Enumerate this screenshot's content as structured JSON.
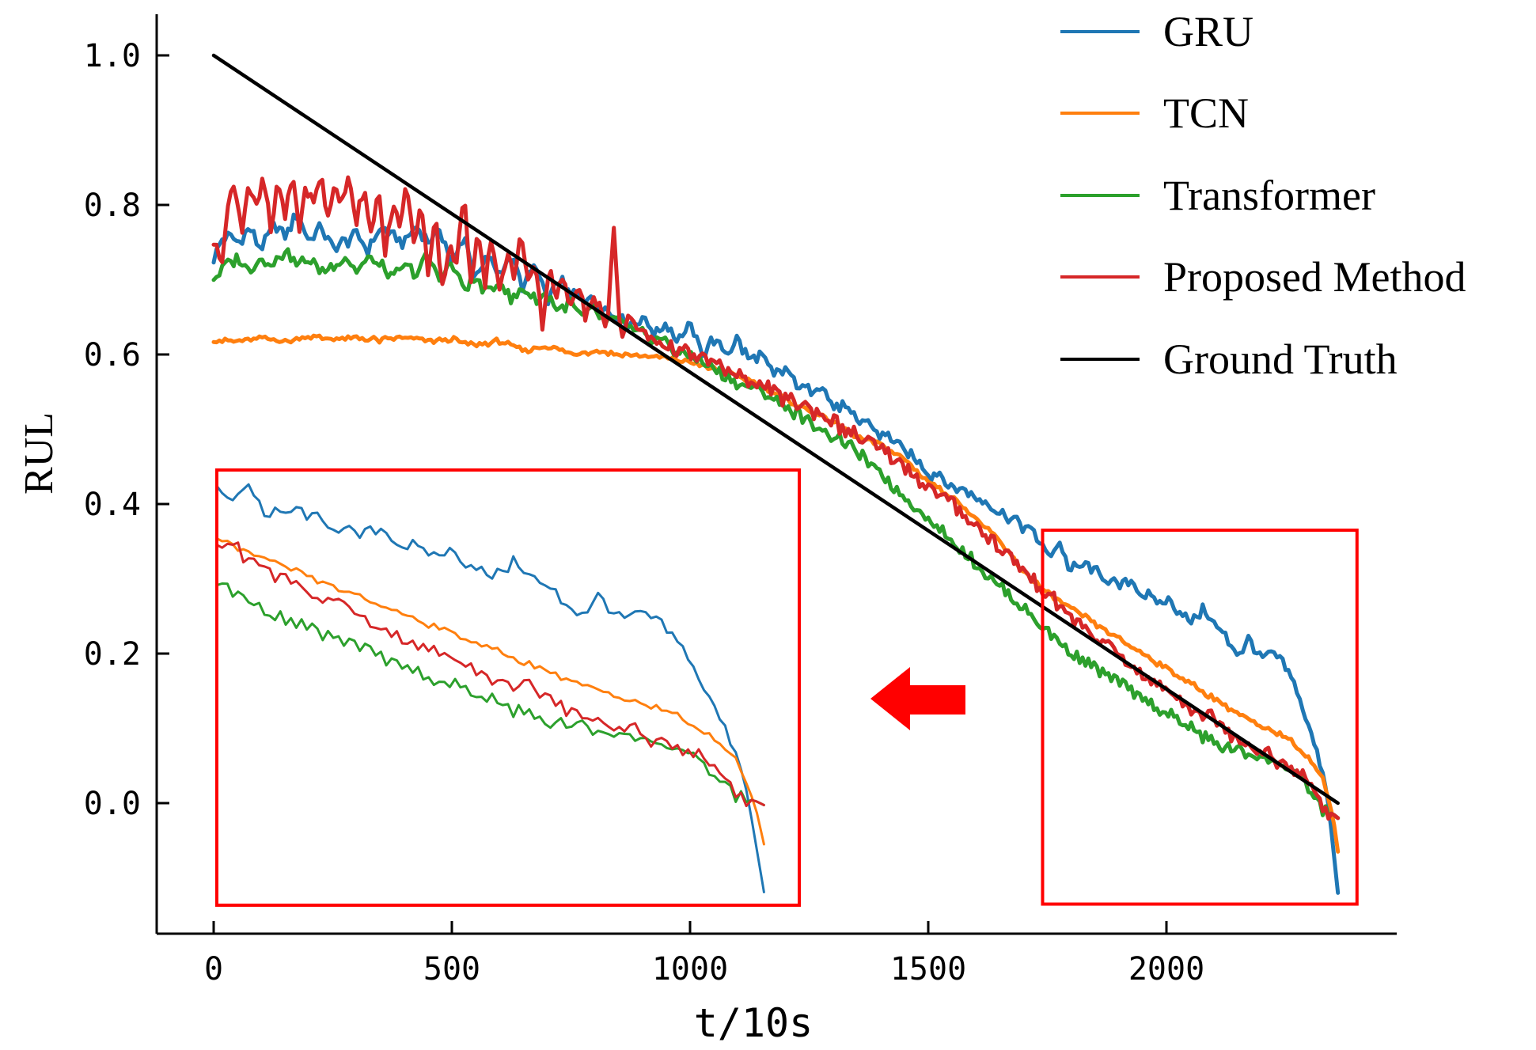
{
  "chart_data": {
    "type": "line",
    "title": "",
    "xlabel": "t/10s",
    "ylabel": "RUL",
    "xlim": [
      -120,
      2500
    ],
    "ylim": [
      -0.18,
      1.07
    ],
    "xticks": [
      0,
      500,
      1000,
      1500,
      2000
    ],
    "yticks": [
      0.0,
      0.2,
      0.4,
      0.6,
      0.8,
      1.0
    ],
    "xtick_labels": [
      "0",
      "500",
      "1000",
      "1500",
      "2000"
    ],
    "ytick_labels": [
      "0.0",
      "0.2",
      "0.4",
      "0.6",
      "0.8",
      "1.0"
    ],
    "grid": false,
    "legend_position": "top-right",
    "series": [
      {
        "name": "GRU",
        "color": "#1f77b4",
        "x": [
          0,
          25,
          50,
          75,
          100,
          125,
          150,
          175,
          200,
          225,
          250,
          275,
          300,
          325,
          350,
          375,
          400,
          425,
          450,
          475,
          500,
          525,
          550,
          575,
          600,
          625,
          650,
          675,
          700,
          725,
          750,
          775,
          800,
          825,
          850,
          875,
          900,
          925,
          950,
          975,
          1000,
          1025,
          1050,
          1075,
          1100,
          1125,
          1150,
          1175,
          1200,
          1225,
          1250,
          1275,
          1300,
          1325,
          1350,
          1375,
          1400,
          1425,
          1450,
          1475,
          1500,
          1525,
          1550,
          1575,
          1600,
          1625,
          1650,
          1675,
          1700,
          1725,
          1750,
          1775,
          1800,
          1825,
          1850,
          1875,
          1900,
          1925,
          1950,
          1975,
          2000,
          2025,
          2050,
          2075,
          2100,
          2125,
          2150,
          2175,
          2200,
          2225,
          2250,
          2275,
          2300,
          2325,
          2340,
          2350,
          2360
        ],
        "values": [
          0.73,
          0.76,
          0.75,
          0.77,
          0.74,
          0.77,
          0.76,
          0.79,
          0.75,
          0.77,
          0.74,
          0.75,
          0.76,
          0.74,
          0.77,
          0.76,
          0.75,
          0.77,
          0.75,
          0.77,
          0.72,
          0.76,
          0.7,
          0.73,
          0.71,
          0.73,
          0.69,
          0.72,
          0.67,
          0.7,
          0.68,
          0.68,
          0.67,
          0.66,
          0.65,
          0.64,
          0.65,
          0.63,
          0.64,
          0.62,
          0.64,
          0.6,
          0.62,
          0.6,
          0.62,
          0.59,
          0.6,
          0.57,
          0.58,
          0.56,
          0.55,
          0.56,
          0.53,
          0.53,
          0.51,
          0.51,
          0.49,
          0.49,
          0.47,
          0.46,
          0.44,
          0.44,
          0.42,
          0.42,
          0.41,
          0.4,
          0.39,
          0.38,
          0.37,
          0.36,
          0.33,
          0.35,
          0.31,
          0.32,
          0.31,
          0.3,
          0.29,
          0.3,
          0.28,
          0.27,
          0.27,
          0.26,
          0.24,
          0.26,
          0.24,
          0.22,
          0.2,
          0.22,
          0.19,
          0.2,
          0.18,
          0.15,
          0.1,
          0.05,
          0.0,
          -0.06,
          -0.12
        ]
      },
      {
        "name": "TCN",
        "color": "#ff7f0e",
        "x": [
          0,
          50,
          100,
          150,
          200,
          250,
          300,
          350,
          400,
          450,
          500,
          550,
          600,
          650,
          700,
          750,
          800,
          850,
          900,
          950,
          1000,
          1050,
          1100,
          1150,
          1200,
          1250,
          1300,
          1350,
          1400,
          1450,
          1500,
          1550,
          1600,
          1650,
          1700,
          1750,
          1800,
          1850,
          1900,
          1950,
          2000,
          2050,
          2100,
          2150,
          2200,
          2250,
          2300,
          2330,
          2350,
          2360
        ],
        "values": [
          0.62,
          0.617,
          0.622,
          0.618,
          0.624,
          0.62,
          0.622,
          0.619,
          0.623,
          0.618,
          0.62,
          0.612,
          0.618,
          0.605,
          0.612,
          0.6,
          0.605,
          0.6,
          0.598,
          0.595,
          0.59,
          0.58,
          0.57,
          0.56,
          0.54,
          0.525,
          0.51,
          0.49,
          0.48,
          0.46,
          0.43,
          0.41,
          0.38,
          0.35,
          0.31,
          0.28,
          0.26,
          0.24,
          0.22,
          0.2,
          0.18,
          0.16,
          0.14,
          0.12,
          0.1,
          0.09,
          0.06,
          0.03,
          -0.02,
          -0.065
        ]
      },
      {
        "name": "Transformer",
        "color": "#2ca02c",
        "x": [
          0,
          25,
          50,
          75,
          100,
          125,
          150,
          175,
          200,
          225,
          250,
          275,
          300,
          325,
          350,
          375,
          400,
          425,
          450,
          475,
          500,
          525,
          550,
          575,
          600,
          625,
          650,
          675,
          700,
          725,
          750,
          775,
          800,
          825,
          850,
          875,
          900,
          925,
          950,
          975,
          1000,
          1050,
          1100,
          1150,
          1200,
          1250,
          1300,
          1350,
          1400,
          1450,
          1500,
          1550,
          1600,
          1650,
          1700,
          1750,
          1800,
          1850,
          1900,
          1950,
          2000,
          2050,
          2100,
          2150,
          2200,
          2250,
          2300,
          2330,
          2350,
          2360
        ],
        "values": [
          0.7,
          0.72,
          0.73,
          0.71,
          0.73,
          0.72,
          0.74,
          0.72,
          0.73,
          0.71,
          0.72,
          0.73,
          0.71,
          0.73,
          0.72,
          0.7,
          0.72,
          0.71,
          0.73,
          0.7,
          0.72,
          0.69,
          0.7,
          0.68,
          0.7,
          0.67,
          0.69,
          0.67,
          0.68,
          0.66,
          0.67,
          0.65,
          0.66,
          0.64,
          0.65,
          0.63,
          0.63,
          0.62,
          0.62,
          0.6,
          0.6,
          0.58,
          0.56,
          0.55,
          0.53,
          0.51,
          0.49,
          0.47,
          0.44,
          0.41,
          0.38,
          0.35,
          0.32,
          0.29,
          0.26,
          0.23,
          0.2,
          0.18,
          0.16,
          0.14,
          0.12,
          0.1,
          0.08,
          0.07,
          0.06,
          0.05,
          0.02,
          -0.01,
          -0.015,
          -0.02
        ]
      },
      {
        "name": "Proposed Method",
        "color": "#d62728",
        "x": [
          0,
          15,
          30,
          45,
          60,
          75,
          90,
          105,
          120,
          135,
          150,
          165,
          180,
          195,
          210,
          225,
          240,
          255,
          270,
          285,
          300,
          315,
          330,
          345,
          360,
          375,
          390,
          405,
          420,
          435,
          450,
          465,
          480,
          495,
          510,
          525,
          540,
          555,
          570,
          585,
          600,
          615,
          630,
          645,
          660,
          675,
          690,
          705,
          720,
          735,
          750,
          765,
          780,
          795,
          810,
          825,
          840,
          855,
          870,
          900,
          950,
          1000,
          1050,
          1100,
          1150,
          1200,
          1250,
          1300,
          1350,
          1400,
          1450,
          1500,
          1550,
          1600,
          1650,
          1700,
          1750,
          1800,
          1850,
          1900,
          1950,
          2000,
          2050,
          2100,
          2150,
          2200,
          2250,
          2300,
          2330,
          2350,
          2360
        ],
        "values": [
          0.75,
          0.72,
          0.8,
          0.83,
          0.76,
          0.83,
          0.8,
          0.84,
          0.76,
          0.83,
          0.78,
          0.84,
          0.77,
          0.83,
          0.8,
          0.84,
          0.78,
          0.83,
          0.8,
          0.84,
          0.78,
          0.83,
          0.76,
          0.82,
          0.73,
          0.8,
          0.77,
          0.83,
          0.75,
          0.8,
          0.71,
          0.79,
          0.69,
          0.75,
          0.72,
          0.82,
          0.69,
          0.77,
          0.7,
          0.76,
          0.68,
          0.74,
          0.71,
          0.76,
          0.69,
          0.72,
          0.64,
          0.72,
          0.68,
          0.7,
          0.67,
          0.7,
          0.65,
          0.68,
          0.66,
          0.63,
          0.77,
          0.62,
          0.65,
          0.63,
          0.61,
          0.6,
          0.59,
          0.57,
          0.56,
          0.54,
          0.53,
          0.51,
          0.49,
          0.47,
          0.45,
          0.42,
          0.4,
          0.37,
          0.34,
          0.31,
          0.28,
          0.25,
          0.22,
          0.2,
          0.17,
          0.15,
          0.13,
          0.11,
          0.09,
          0.07,
          0.05,
          0.03,
          -0.01,
          -0.015,
          -0.02
        ]
      },
      {
        "name": "Ground Truth",
        "color": "#000000",
        "x": [
          0,
          2360
        ],
        "values": [
          1.0,
          0.0
        ]
      }
    ],
    "inset": {
      "source_x_range": [
        1740,
        2400
      ],
      "source_y_range": [
        -0.135,
        0.365
      ],
      "highlight_color": "#ff0000",
      "arrow_color": "#ff0000"
    }
  }
}
